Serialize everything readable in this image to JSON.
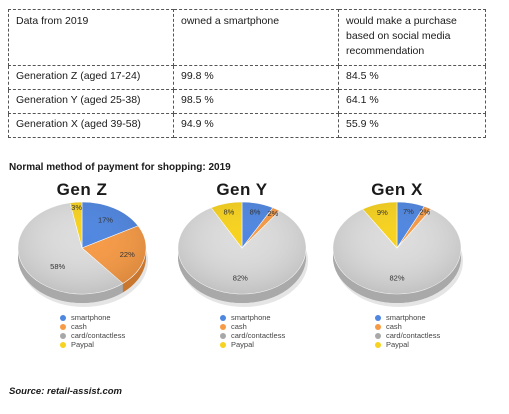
{
  "table": {
    "headers": [
      "Data from 2019",
      "owned a smartphone",
      "would make a purchase based on social media recommendation"
    ],
    "rows": [
      [
        "Generation Z (aged 17-24)",
        "99.8 %",
        "84.5 %"
      ],
      [
        "Generation Y (aged 25-38)",
        "98.5 %",
        "64.1 %"
      ],
      [
        "Generation X (aged 39-58)",
        "94.9 %",
        "55.9 %"
      ]
    ]
  },
  "section_title": "Normal method of payment for shopping: 2019",
  "legend": [
    "smartphone",
    "cash",
    "card/contactless",
    "Paypal"
  ],
  "source": "Source: retail-assist.com",
  "colors": {
    "smartphone": "#4f86e0",
    "cash": "#f79a45",
    "card": "#dcdcdc",
    "paypal": "#f7d21e"
  },
  "chart_data": [
    {
      "type": "pie",
      "title": "Gen Z",
      "categories": [
        "smartphone",
        "cash",
        "card/contactless",
        "Paypal"
      ],
      "values": [
        17,
        22,
        58,
        3
      ],
      "labels": [
        "17%",
        "22%",
        "58%",
        "3%"
      ]
    },
    {
      "type": "pie",
      "title": "Gen Y",
      "categories": [
        "smartphone",
        "cash",
        "card/contactless",
        "Paypal"
      ],
      "values": [
        8,
        2,
        82,
        8
      ],
      "labels": [
        "8%",
        "2%",
        "82%",
        "8%"
      ]
    },
    {
      "type": "pie",
      "title": "Gen X",
      "categories": [
        "smartphone",
        "cash",
        "card/contactless",
        "Paypal"
      ],
      "values": [
        7,
        2,
        82,
        9
      ],
      "labels": [
        "7%",
        "2%",
        "82%",
        "9%"
      ]
    }
  ]
}
